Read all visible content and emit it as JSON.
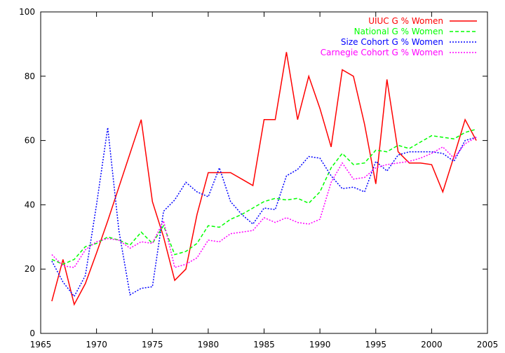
{
  "chart_data": {
    "type": "line",
    "title": "",
    "xlabel": "",
    "ylabel": "",
    "xlim": [
      1965,
      2005
    ],
    "ylim": [
      0,
      100
    ],
    "xticks": [
      1965,
      1970,
      1975,
      1980,
      1985,
      1990,
      1995,
      2000,
      2005
    ],
    "yticks": [
      0,
      20,
      40,
      60,
      80,
      100
    ],
    "grid": false,
    "legend_position": "top-right",
    "x": [
      1966,
      1967,
      1968,
      1969,
      1970,
      1971,
      1972,
      1973,
      1974,
      1975,
      1976,
      1977,
      1978,
      1979,
      1980,
      1981,
      1982,
      1983,
      1984,
      1985,
      1986,
      1987,
      1988,
      1989,
      1990,
      1991,
      1992,
      1993,
      1994,
      1995,
      1996,
      1997,
      1998,
      1999,
      2000,
      2001,
      2002,
      2003,
      2004
    ],
    "series": [
      {
        "name": "UIUC G % Women",
        "color": "#ff0000",
        "dash": "solid",
        "values": [
          10,
          23,
          9,
          15.5,
          25,
          35,
          45.5,
          56,
          66.5,
          41,
          30,
          16.5,
          20,
          37,
          50,
          50,
          50,
          48,
          46,
          66.5,
          66.5,
          87.5,
          66.5,
          80,
          70,
          58,
          82,
          80,
          65,
          46.5,
          79,
          56.5,
          53,
          53,
          52.5,
          44,
          55,
          66.5,
          60
        ]
      },
      {
        "name": "National G % Women",
        "color": "#00ff00",
        "dash": "dashed",
        "values": [
          23,
          21.5,
          23,
          27,
          28,
          30,
          29,
          27.5,
          31.5,
          28,
          33.5,
          24.5,
          25.5,
          28,
          33.5,
          33,
          35.5,
          37,
          39,
          41,
          42,
          41.5,
          42,
          40.5,
          44,
          51.5,
          56,
          52.5,
          53,
          57,
          56.5,
          58.5,
          57.5,
          59.5,
          61.5,
          61,
          60.5,
          62.5,
          63.5
        ]
      },
      {
        "name": "Size Cohort G % Women",
        "color": "#0000ff",
        "dash": "dotted",
        "values": [
          22.5,
          16,
          11.5,
          18,
          40,
          64,
          32,
          12,
          14,
          14.5,
          38,
          41.5,
          47,
          44,
          42.5,
          51.5,
          41,
          37,
          34,
          39,
          38.5,
          49,
          51,
          55,
          54.5,
          49,
          45,
          45.5,
          44,
          53.5,
          50.5,
          55.5,
          56.5,
          56.5,
          56.5,
          56,
          53.5,
          60,
          61
        ]
      },
      {
        "name": "Carnegie Cohort G % Women",
        "color": "#ff00ff",
        "dash": "dotted",
        "values": [
          24.5,
          21,
          20.5,
          26,
          28.5,
          29.5,
          29,
          26.5,
          28.5,
          28,
          35,
          20.5,
          21.5,
          23.5,
          29,
          28.5,
          31,
          31.5,
          32,
          36,
          34.5,
          36,
          34.5,
          34,
          35.5,
          47,
          53,
          48,
          48.5,
          51.5,
          52.5,
          53,
          53.5,
          54.5,
          56,
          58,
          54.5,
          59,
          61
        ]
      }
    ]
  }
}
